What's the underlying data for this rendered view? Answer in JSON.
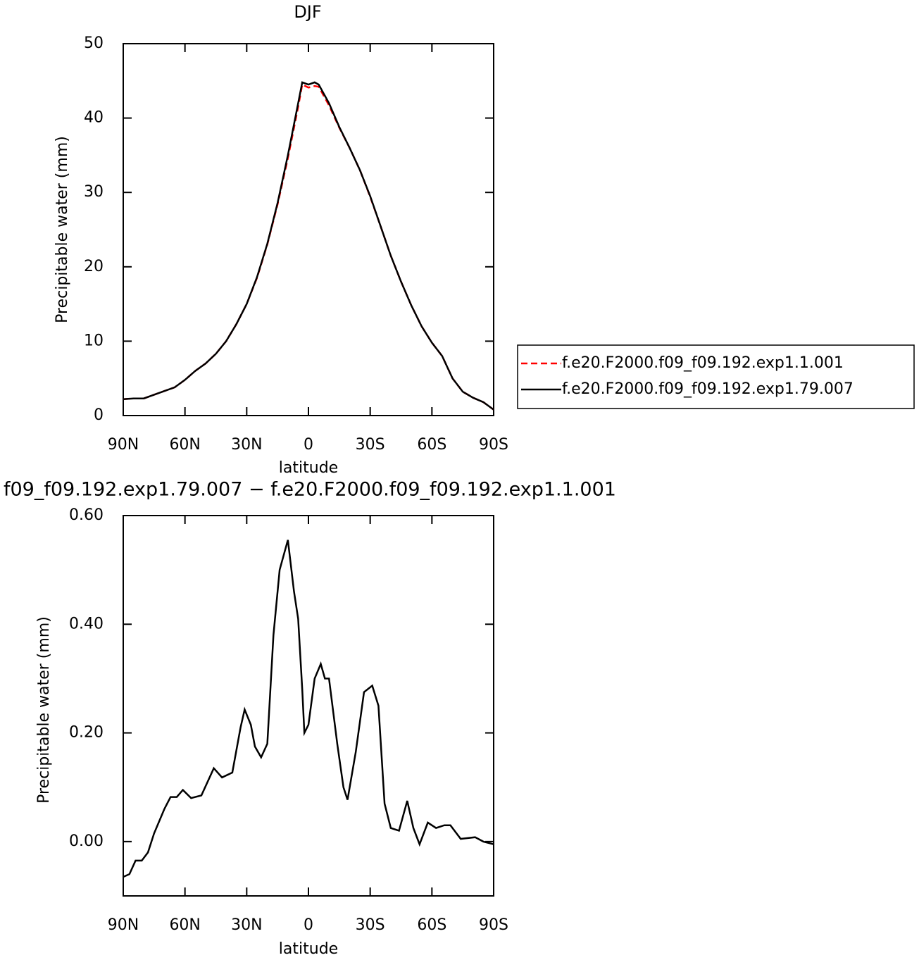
{
  "chart_data": [
    {
      "type": "line",
      "title": "DJF",
      "xlabel": "latitude",
      "ylabel": "Precipitable water (mm)",
      "x": [
        90,
        85,
        80,
        75,
        70,
        65,
        60,
        55,
        50,
        45,
        40,
        35,
        30,
        25,
        20,
        15,
        10,
        5,
        3,
        0,
        -3,
        -5,
        -10,
        -15,
        -20,
        -25,
        -30,
        -35,
        -40,
        -45,
        -50,
        -55,
        -60,
        -65,
        -70,
        -75,
        -80,
        -85,
        -90
      ],
      "series": [
        {
          "name": "f.e20.F2000.f09_f09.192.exp1.1.001",
          "color": "#ff0000",
          "dash": true,
          "values": [
            2.2,
            2.3,
            2.3,
            2.8,
            3.3,
            3.8,
            4.8,
            6.0,
            7.0,
            8.3,
            10.0,
            12.3,
            15.0,
            18.5,
            23.0,
            28.4,
            34.6,
            41.5,
            44.5,
            44.1,
            44.3,
            44.2,
            41.7,
            38.7,
            36.0,
            33.0,
            29.4,
            25.5,
            21.5,
            18.0,
            14.8,
            12.0,
            9.8,
            8.0,
            5.0,
            3.2,
            2.4,
            1.8,
            0.8
          ]
        },
        {
          "name": "f.e20.F2000.f09_f09.192.exp1.79.007",
          "color": "#000000",
          "dash": false,
          "values": [
            2.2,
            2.3,
            2.3,
            2.8,
            3.3,
            3.8,
            4.8,
            6.0,
            7.0,
            8.3,
            10.0,
            12.3,
            15.0,
            18.6,
            23.1,
            28.6,
            35.0,
            42.0,
            44.8,
            44.5,
            44.8,
            44.5,
            42.0,
            38.8,
            36.0,
            33.0,
            29.5,
            25.5,
            21.5,
            18.0,
            14.8,
            12.0,
            9.8,
            8.0,
            5.0,
            3.2,
            2.4,
            1.8,
            0.8
          ]
        }
      ],
      "xlim": [
        90,
        -90
      ],
      "xticks": [
        {
          "value": 90,
          "label": "90N"
        },
        {
          "value": 60,
          "label": "60N"
        },
        {
          "value": 30,
          "label": "30N"
        },
        0,
        {
          "value": -30,
          "label": "30S"
        },
        {
          "value": -60,
          "label": "60S"
        },
        {
          "value": -90,
          "label": "90S"
        }
      ],
      "ylim": [
        0,
        50
      ],
      "yticks": [
        0,
        10,
        20,
        30,
        40,
        50
      ]
    },
    {
      "type": "line",
      "title": "f09_f09.192.exp1.79.007 − f.e20.F2000.f09_f09.192.exp1.1.001",
      "xlabel": "latitude",
      "ylabel": "Precipitable water (mm)",
      "x": [
        90,
        87,
        84,
        81,
        78,
        75,
        70,
        67,
        64,
        61,
        57,
        52,
        46,
        42,
        37,
        33,
        31,
        28,
        26,
        23,
        20,
        17,
        14,
        10,
        7,
        5,
        3,
        2,
        0,
        -3,
        -6,
        -8,
        -10,
        -14,
        -17,
        -19,
        -23,
        -27,
        -31,
        -34,
        -37,
        -40,
        -44,
        -48,
        -51,
        -54,
        -58,
        -62,
        -66,
        -69,
        -74,
        -81,
        -85,
        -90
      ],
      "values": [
        -0.065,
        -0.06,
        -0.035,
        -0.035,
        -0.02,
        0.015,
        0.06,
        0.082,
        0.082,
        0.095,
        0.08,
        0.085,
        0.135,
        0.118,
        0.127,
        0.21,
        0.243,
        0.215,
        0.175,
        0.155,
        0.18,
        0.38,
        0.5,
        0.555,
        0.46,
        0.41,
        0.28,
        0.2,
        0.215,
        0.3,
        0.327,
        0.3,
        0.3,
        0.18,
        0.1,
        0.077,
        0.165,
        0.275,
        0.287,
        0.25,
        0.07,
        0.025,
        0.02,
        0.075,
        0.025,
        -0.005,
        0.035,
        0.025,
        0.03,
        0.03,
        0.005,
        0.008,
        0.0,
        -0.005
      ],
      "color": "#000000",
      "xlim": [
        90,
        -90
      ],
      "xticks": [
        {
          "value": 90,
          "label": "90N"
        },
        {
          "value": 60,
          "label": "60N"
        },
        {
          "value": 30,
          "label": "30N"
        },
        0,
        {
          "value": -30,
          "label": "30S"
        },
        {
          "value": -60,
          "label": "60S"
        },
        {
          "value": -90,
          "label": "90S"
        }
      ],
      "ylim": [
        -0.1,
        0.6
      ],
      "yticks": [
        {
          "value": 0,
          "label": "0.00"
        },
        {
          "value": 0.2,
          "label": "0.20"
        },
        {
          "value": 0.4,
          "label": "0.40"
        },
        {
          "value": 0.6,
          "label": "0.60"
        }
      ]
    }
  ]
}
